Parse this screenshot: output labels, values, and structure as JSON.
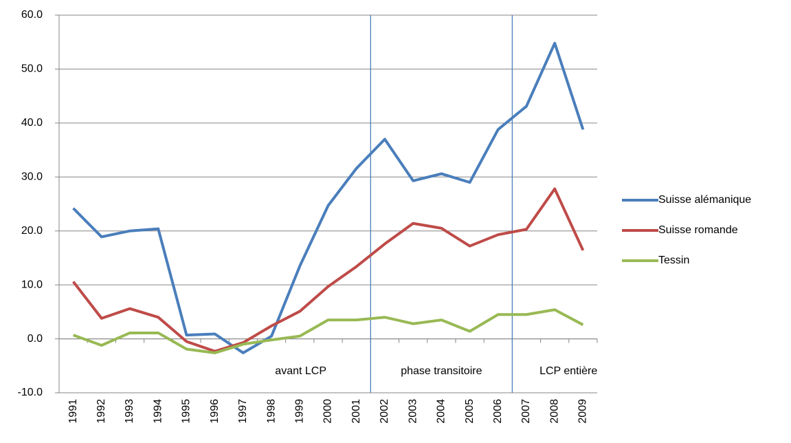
{
  "chart_data": {
    "type": "line",
    "categories": [
      "1991",
      "1992",
      "1993",
      "1994",
      "1995",
      "1996",
      "1997",
      "1998",
      "1999",
      "2000",
      "2001",
      "2002",
      "2003",
      "2004",
      "2005",
      "2006",
      "2007",
      "2008",
      "2009"
    ],
    "series": [
      {
        "name": "Suisse alémanique",
        "color": "#4a7ebb",
        "values": [
          24.2,
          18.9,
          20.0,
          20.4,
          0.7,
          0.9,
          -2.6,
          0.5,
          13.5,
          24.7,
          31.6,
          37.0,
          29.3,
          30.6,
          29.0,
          38.8,
          43.1,
          54.8,
          38.8
        ]
      },
      {
        "name": "Suisse romande",
        "color": "#be4b48",
        "values": [
          10.6,
          3.8,
          5.6,
          4.0,
          -0.5,
          -2.3,
          -0.7,
          2.4,
          5.1,
          9.7,
          13.4,
          17.6,
          21.4,
          20.5,
          17.2,
          19.3,
          20.3,
          27.8,
          16.4
        ]
      },
      {
        "name": "Tessin",
        "color": "#98b954",
        "values": [
          0.7,
          -1.2,
          1.1,
          1.1,
          -1.9,
          -2.6,
          -1.0,
          -0.2,
          0.5,
          3.5,
          3.5,
          4.0,
          2.8,
          3.5,
          1.4,
          4.5,
          4.5,
          5.4,
          2.6
        ]
      }
    ],
    "ylim": [
      -10,
      60
    ],
    "yticks": [
      {
        "value": -10,
        "label": "-10.0"
      },
      {
        "value": 0,
        "label": "0.0"
      },
      {
        "value": 10,
        "label": "10.0"
      },
      {
        "value": 20,
        "label": "20.0"
      },
      {
        "value": 30,
        "label": "30.0"
      },
      {
        "value": 40,
        "label": "40.0"
      },
      {
        "value": 50,
        "label": "50.0"
      },
      {
        "value": 60,
        "label": "60.0"
      }
    ],
    "grid": true,
    "legend": "right",
    "phases": [
      {
        "label": "avant  LCP",
        "end": "2001"
      },
      {
        "label": "phase transitoire",
        "end": "2006"
      },
      {
        "label": "LCP entière"
      }
    ],
    "phase_line_color": "#4a7ebb"
  }
}
